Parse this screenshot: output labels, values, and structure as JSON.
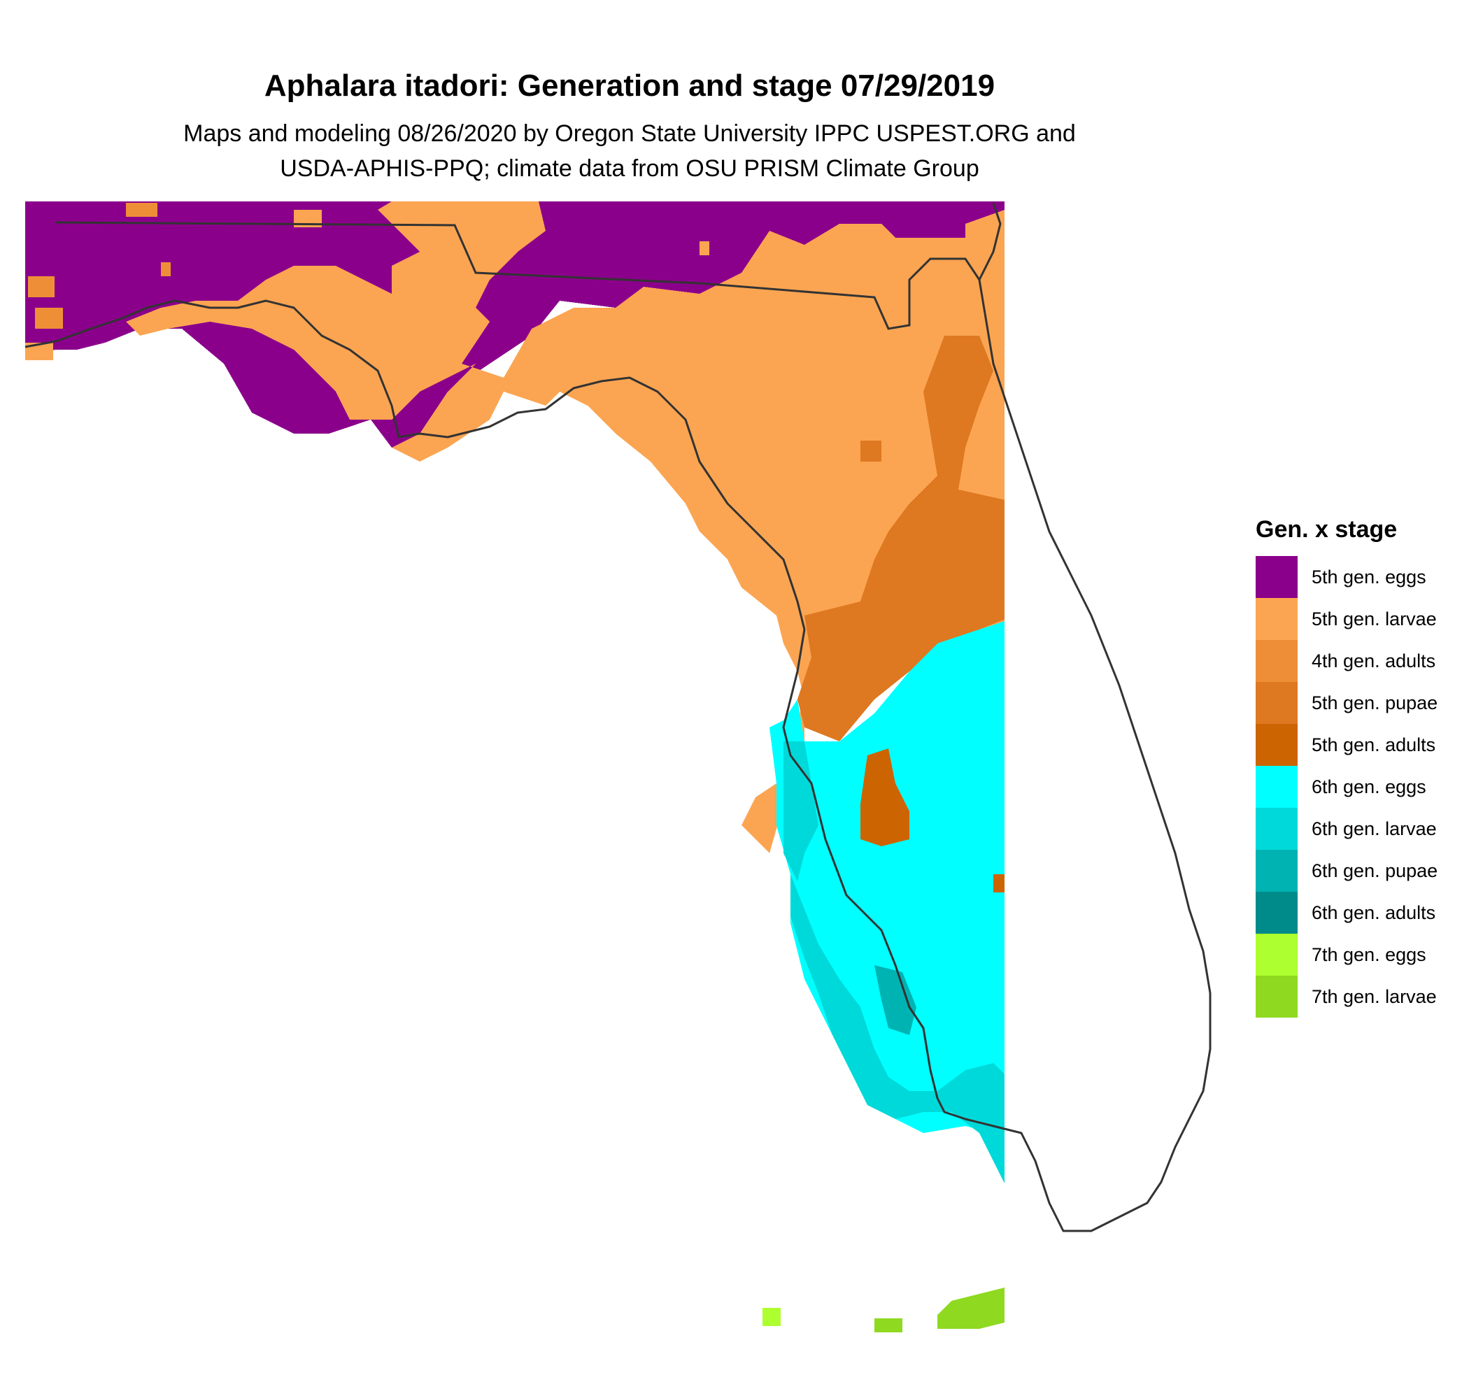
{
  "title": "Aphalara itadori: Generation and stage 07/29/2019",
  "subtitle_line1": "Maps and modeling 08/26/2020 by Oregon State University IPPC USPEST.ORG and",
  "subtitle_line2": "USDA-APHIS-PPQ; climate data from OSU PRISM Climate Group",
  "legend": {
    "title": "Gen. x stage",
    "items": [
      {
        "label": "5th gen. eggs",
        "color": "#8b008b"
      },
      {
        "label": "5th gen. larvae",
        "color": "#fba552"
      },
      {
        "label": "4th gen. adults",
        "color": "#ee8f38"
      },
      {
        "label": "5th gen. pupae",
        "color": "#de7821"
      },
      {
        "label": "5th gen. adults",
        "color": "#cd6402"
      },
      {
        "label": "6th gen. eggs",
        "color": "#00ffff"
      },
      {
        "label": "6th gen. larvae",
        "color": "#00d9d9"
      },
      {
        "label": "6th gen. pupae",
        "color": "#00b3b3"
      },
      {
        "label": "6th gen. adults",
        "color": "#008b8b"
      },
      {
        "label": "7th gen. eggs",
        "color": "#adff2f"
      },
      {
        "label": "7th gen. larvae",
        "color": "#8fd920"
      }
    ]
  },
  "colors": {
    "outline": "#333333"
  }
}
